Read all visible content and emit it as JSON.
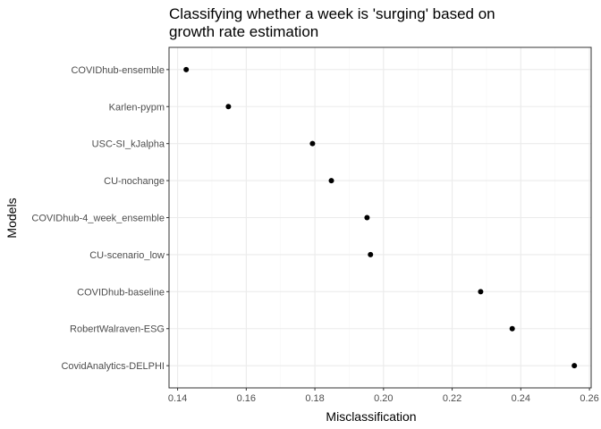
{
  "chart_data": {
    "type": "scatter",
    "title_lines": [
      "Classifying whether a week is 'surging' based on",
      "growth rate estimation"
    ],
    "xlabel": "Misclassification",
    "ylabel": "Models",
    "xlim": [
      0.1375,
      0.2605
    ],
    "xticks": [
      0.14,
      0.16,
      0.18,
      0.2,
      0.22,
      0.24,
      0.26
    ],
    "xtick_labels": [
      "0.14",
      "0.16",
      "0.18",
      "0.20",
      "0.22",
      "0.24",
      "0.26"
    ],
    "grid": true,
    "points": [
      {
        "model": "COVIDhub-ensemble",
        "value": 0.1425
      },
      {
        "model": "Karlen-pypm",
        "value": 0.1548
      },
      {
        "model": "USC-SI_kJalpha",
        "value": 0.1793
      },
      {
        "model": "CU-nochange",
        "value": 0.1848
      },
      {
        "model": "COVIDhub-4_week_ensemble",
        "value": 0.1952
      },
      {
        "model": "CU-scenario_low",
        "value": 0.1962
      },
      {
        "model": "COVIDhub-baseline",
        "value": 0.2283
      },
      {
        "model": "RobertWalraven-ESG",
        "value": 0.2375
      },
      {
        "model": "CovidAnalytics-DELPHI",
        "value": 0.2556
      }
    ],
    "colors": {
      "point": "#000000",
      "grid_major": "#ebebeb",
      "grid_minor": "#f5f5f5",
      "border": "#333333",
      "tick_text": "#4d4d4d"
    }
  }
}
